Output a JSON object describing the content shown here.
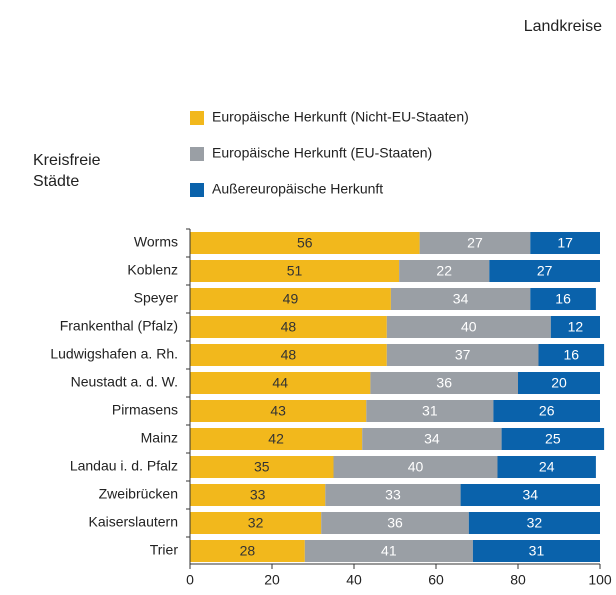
{
  "chart_data": {
    "type": "stacked_barh",
    "annotations": [
      "Landkreise",
      "Kreisfreie Städte"
    ],
    "categories": [
      "Worms",
      "Koblenz",
      "Speyer",
      "Frankenthal (Pfalz)",
      "Ludwigshafen a. Rh.",
      "Neustadt a. d. W.",
      "Pirmasens",
      "Mainz",
      "Landau i. d. Pfalz",
      "Zweibrücken",
      "Kaiserslautern",
      "Trier"
    ],
    "series": [
      {
        "name": "Europäische Herkunft (Nicht-EU-Staaten)",
        "color": "#f2b81c",
        "label_color": "#333333",
        "values": [
          56,
          51,
          49,
          48,
          48,
          44,
          43,
          42,
          35,
          33,
          32,
          28
        ]
      },
      {
        "name": "Europäische Herkunft (EU-Staaten)",
        "color": "#9a9fa5",
        "label_color": "#ffffff",
        "values": [
          27,
          22,
          34,
          40,
          37,
          36,
          31,
          34,
          40,
          33,
          36,
          41
        ]
      },
      {
        "name": "Außereuropäische Herkunft",
        "color": "#0a62ab",
        "label_color": "#ffffff",
        "values": [
          17,
          27,
          16,
          12,
          16,
          20,
          26,
          25,
          24,
          34,
          32,
          31
        ]
      }
    ],
    "xlim": [
      0,
      100
    ],
    "xticks": [
      0,
      20,
      40,
      60,
      80,
      100
    ],
    "grid": false
  }
}
